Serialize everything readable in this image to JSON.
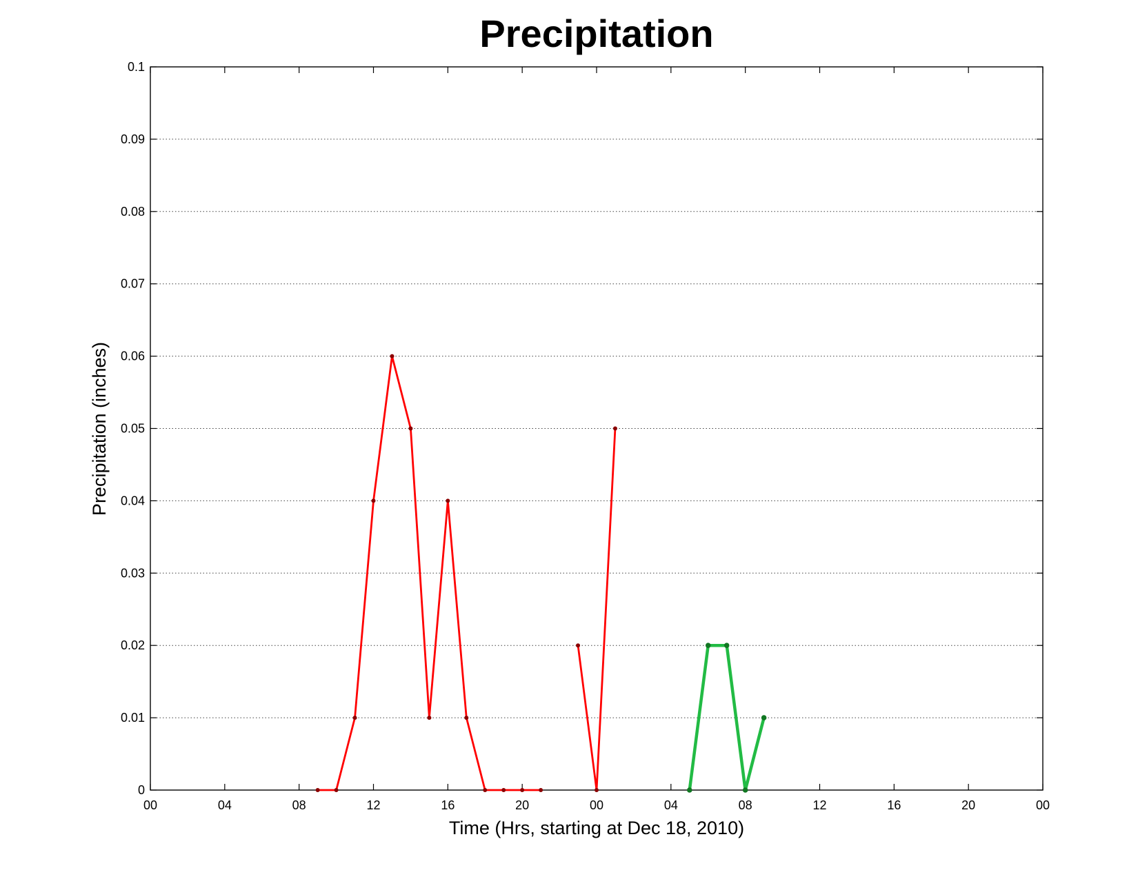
{
  "chart_data": {
    "type": "line",
    "title": "Precipitation",
    "xlabel": "Time (Hrs, starting at Dec 18, 2010)",
    "ylabel": "Precipitation (inches)",
    "xlim": [
      0,
      48
    ],
    "ylim": [
      0,
      0.1
    ],
    "grid": "y-only",
    "x_ticks": [
      0,
      4,
      8,
      12,
      16,
      20,
      24,
      28,
      32,
      36,
      40,
      44,
      48
    ],
    "x_tick_labels": [
      "00",
      "04",
      "08",
      "12",
      "16",
      "20",
      "00",
      "04",
      "08",
      "12",
      "16",
      "20",
      "00"
    ],
    "y_ticks": [
      0,
      0.01,
      0.02,
      0.03,
      0.04,
      0.05,
      0.06,
      0.07,
      0.08,
      0.09,
      0.1
    ],
    "y_tick_labels": [
      "0",
      "0.01",
      "0.02",
      "0.03",
      "0.04",
      "0.05",
      "0.06",
      "0.07",
      "0.08",
      "0.09",
      "0.1"
    ],
    "series": [
      {
        "color": "#ff0000",
        "marker_color": "#8b0000",
        "segments": [
          {
            "x": [
              9,
              10,
              11,
              12,
              13,
              14,
              15,
              16,
              17,
              18,
              19,
              20,
              21
            ],
            "y": [
              0,
              0,
              0.01,
              0.04,
              0.06,
              0.05,
              0.01,
              0.04,
              0.01,
              0,
              0,
              0,
              0
            ]
          },
          {
            "x": [
              23,
              24,
              25
            ],
            "y": [
              0.02,
              0,
              0.05
            ]
          }
        ]
      },
      {
        "color": "#22bb44",
        "marker_color": "#117722",
        "segments": [
          {
            "x": [
              29,
              30,
              31,
              32,
              33
            ],
            "y": [
              0,
              0.02,
              0.02,
              0,
              0.01
            ]
          }
        ]
      }
    ]
  }
}
